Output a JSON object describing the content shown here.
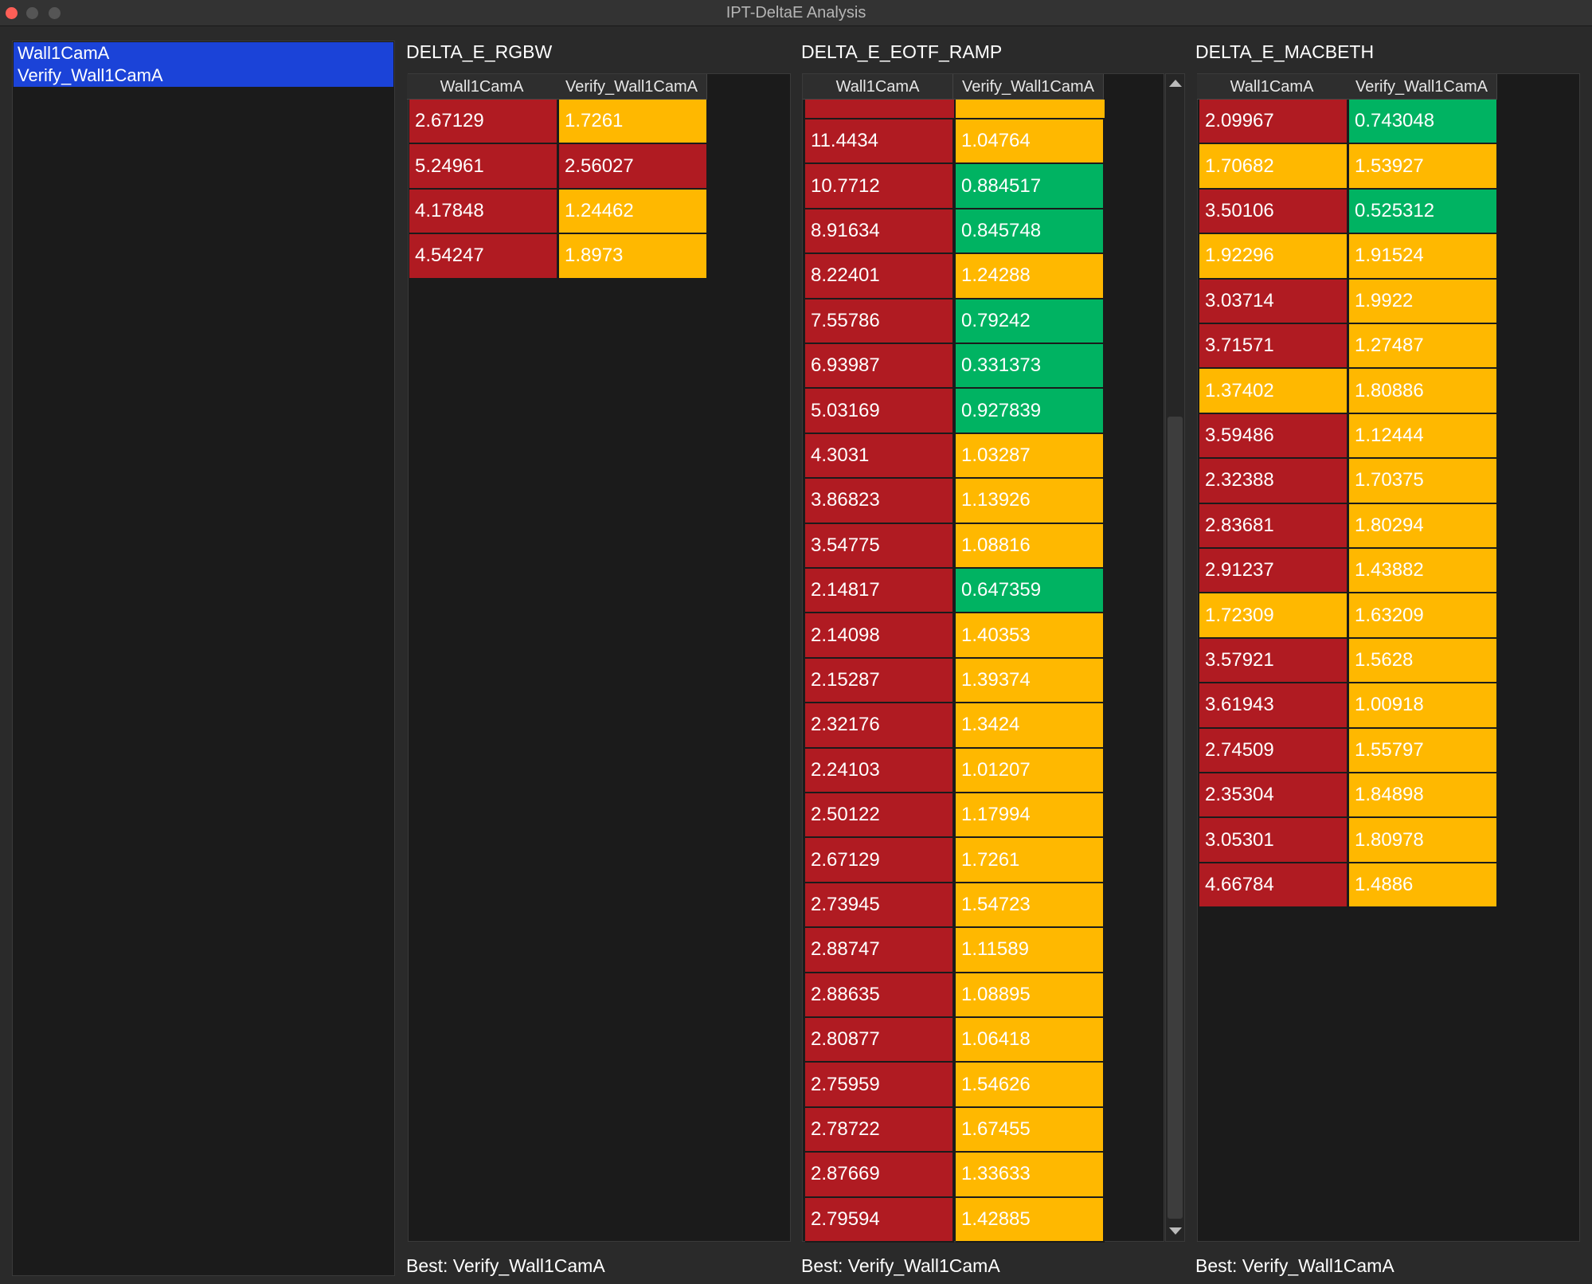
{
  "window_title": "IPT-DeltaE Analysis",
  "list": [
    "Wall1CamA",
    "Verify_Wall1CamA"
  ],
  "colors": [
    "#00b362",
    "#ffb800",
    "#b01b22"
  ],
  "panels": [
    {
      "title": "DELTA_E_RGBW",
      "columns": [
        "Wall1CamA",
        "Verify_Wall1CamA"
      ],
      "rows": [
        [
          2.67129,
          1.7261
        ],
        [
          5.24961,
          2.56027
        ],
        [
          4.17848,
          1.24462
        ],
        [
          4.54247,
          1.8973
        ]
      ],
      "footer": "Best: Verify_Wall1CamA"
    },
    {
      "title": "DELTA_E_EOTF_RAMP",
      "columns": [
        "Wall1CamA",
        "Verify_Wall1CamA"
      ],
      "rows": [
        [
          11.4434,
          1.04764
        ],
        [
          10.7712,
          0.884517
        ],
        [
          8.91634,
          0.845748
        ],
        [
          8.22401,
          1.24288
        ],
        [
          7.55786,
          0.79242
        ],
        [
          6.93987,
          0.331373
        ],
        [
          5.03169,
          0.927839
        ],
        [
          4.3031,
          1.03287
        ],
        [
          3.86823,
          1.13926
        ],
        [
          3.54775,
          1.08816
        ],
        [
          2.14817,
          0.647359
        ],
        [
          2.14098,
          1.40353
        ],
        [
          2.15287,
          1.39374
        ],
        [
          2.32176,
          1.3424
        ],
        [
          2.24103,
          1.01207
        ],
        [
          2.50122,
          1.17994
        ],
        [
          2.67129,
          1.7261
        ],
        [
          2.73945,
          1.54723
        ],
        [
          2.88747,
          1.11589
        ],
        [
          2.88635,
          1.08895
        ],
        [
          2.80877,
          1.06418
        ],
        [
          2.75959,
          1.54626
        ],
        [
          2.78722,
          1.67455
        ],
        [
          2.87669,
          1.33633
        ],
        [
          2.79594,
          1.42885
        ]
      ],
      "footer": "Best: Verify_Wall1CamA"
    },
    {
      "title": "DELTA_E_MACBETH",
      "columns": [
        "Wall1CamA",
        "Verify_Wall1CamA"
      ],
      "rows": [
        [
          2.09967,
          0.743048
        ],
        [
          1.70682,
          1.53927
        ],
        [
          3.50106,
          0.525312
        ],
        [
          1.92296,
          1.91524
        ],
        [
          3.03714,
          1.9922
        ],
        [
          3.71571,
          1.27487
        ],
        [
          1.37402,
          1.80886
        ],
        [
          3.59486,
          1.12444
        ],
        [
          2.32388,
          1.70375
        ],
        [
          2.83681,
          1.80294
        ],
        [
          2.91237,
          1.43882
        ],
        [
          1.72309,
          1.63209
        ],
        [
          3.57921,
          1.5628
        ],
        [
          3.61943,
          1.00918
        ],
        [
          2.74509,
          1.55797
        ],
        [
          2.35304,
          1.84898
        ],
        [
          3.05301,
          1.80978
        ],
        [
          4.66784,
          1.4886
        ]
      ],
      "footer": "Best: Verify_Wall1CamA"
    }
  ]
}
